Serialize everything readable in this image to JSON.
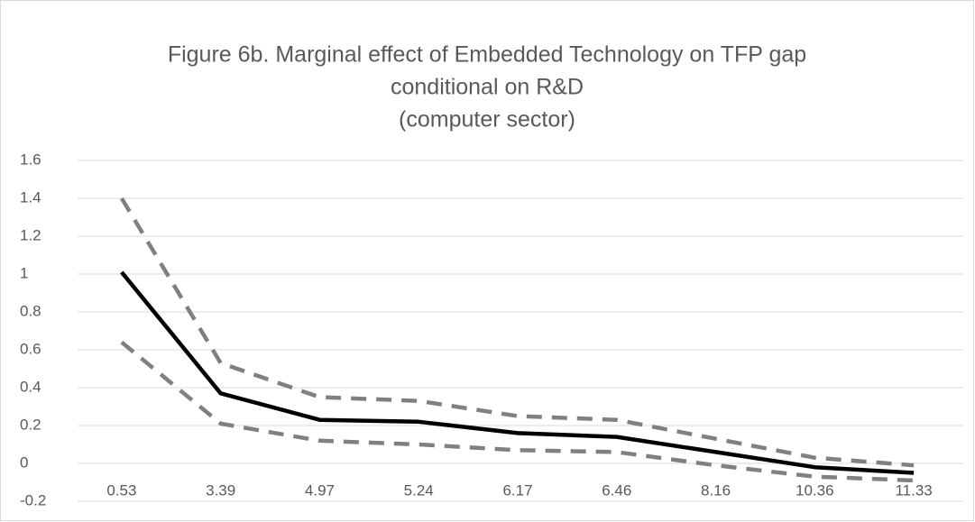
{
  "chart_data": {
    "type": "line",
    "title_lines": [
      "Figure 6b. Marginal effect of Embedded Technology on TFP gap",
      "conditional on R&D",
      "(computer sector)"
    ],
    "categories": [
      "0.53",
      "3.39",
      "4.97",
      "5.24",
      "6.17",
      "6.46",
      "8.16",
      "10.36",
      "11.33"
    ],
    "series": [
      {
        "color": "#808080",
        "dashed": true,
        "values": [
          1.4,
          0.53,
          0.35,
          0.33,
          0.25,
          0.23,
          0.13,
          0.03,
          -0.01
        ]
      },
      {
        "color": "#808080",
        "dashed": true,
        "values": [
          0.64,
          0.21,
          0.12,
          0.1,
          0.07,
          0.06,
          -0.01,
          -0.07,
          -0.09
        ]
      },
      {
        "color": "#000000",
        "dashed": false,
        "values": [
          1.01,
          0.37,
          0.23,
          0.22,
          0.16,
          0.14,
          0.06,
          -0.02,
          -0.05
        ]
      }
    ],
    "ylim": [
      -0.2,
      1.6
    ],
    "yticks": [
      -0.2,
      0,
      0.2,
      0.4,
      0.6,
      0.8,
      1,
      1.2,
      1.4,
      1.6
    ],
    "grid": true
  }
}
